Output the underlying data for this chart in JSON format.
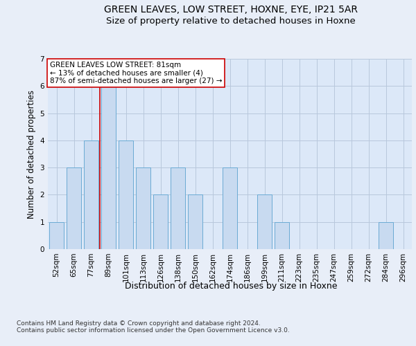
{
  "title1": "GREEN LEAVES, LOW STREET, HOXNE, EYE, IP21 5AR",
  "title2": "Size of property relative to detached houses in Hoxne",
  "xlabel": "Distribution of detached houses by size in Hoxne",
  "ylabel": "Number of detached properties",
  "footnote": "Contains HM Land Registry data © Crown copyright and database right 2024.\nContains public sector information licensed under the Open Government Licence v3.0.",
  "categories": [
    "52sqm",
    "65sqm",
    "77sqm",
    "89sqm",
    "101sqm",
    "113sqm",
    "126sqm",
    "138sqm",
    "150sqm",
    "162sqm",
    "174sqm",
    "186sqm",
    "199sqm",
    "211sqm",
    "223sqm",
    "235sqm",
    "247sqm",
    "259sqm",
    "272sqm",
    "284sqm",
    "296sqm"
  ],
  "values": [
    1,
    3,
    4,
    6,
    4,
    3,
    2,
    3,
    2,
    0,
    3,
    0,
    2,
    1,
    0,
    0,
    0,
    0,
    0,
    1,
    0
  ],
  "bar_color": "#c8daf0",
  "bar_edge_color": "#6aaad4",
  "vline_x_index": 2,
  "vline_color": "#cc0000",
  "annotation_text": "GREEN LEAVES LOW STREET: 81sqm\n← 13% of detached houses are smaller (4)\n87% of semi-detached houses are larger (27) →",
  "annotation_box_color": "white",
  "annotation_box_edge": "#cc0000",
  "ylim": [
    0,
    7
  ],
  "yticks": [
    0,
    1,
    2,
    3,
    4,
    5,
    6,
    7
  ],
  "bg_color": "#e8eef8",
  "plot_bg_color": "#dce8f8",
  "grid_color": "#b8c8dc",
  "title1_fontsize": 10,
  "title2_fontsize": 9.5,
  "xlabel_fontsize": 9,
  "ylabel_fontsize": 8.5,
  "tick_fontsize": 7.5,
  "annot_fontsize": 7.5,
  "footnote_fontsize": 6.5
}
